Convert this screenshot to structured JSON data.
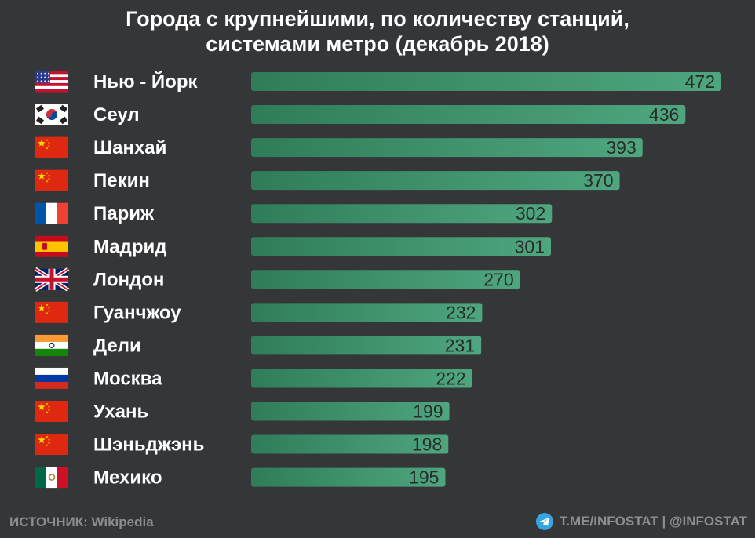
{
  "title_line1": "Города с крупнейшими, по количеству станций,",
  "title_line2": "системами метро (декабрь 2018)",
  "colors": {
    "background": "#353638",
    "bar_start": "#2f7d58",
    "bar_end": "#4ea67f",
    "label_text": "#ffffff",
    "value_text": "#2b2b2b",
    "footer_text": "#8c8d90"
  },
  "footer": {
    "source_label": "ИСТОЧНИК:",
    "source_value": "Wikipedia",
    "telegram_icon": "telegram-icon",
    "handle": "T.ME/INFOSTAT | @INFOSTAT"
  },
  "chart_data": {
    "type": "bar",
    "orientation": "horizontal",
    "title": "Города с крупнейшими, по количеству станций, системами метро (декабрь 2018)",
    "categories": [
      "Нью - Йорк",
      "Сеул",
      "Шанхай",
      "Пекин",
      "Париж",
      "Мадрид",
      "Лондон",
      "Гуанчжоу",
      "Дели",
      "Москва",
      "Ухань",
      "Шэньджэнь",
      "Мехико"
    ],
    "flags": [
      "usa-flag",
      "south-korea-flag",
      "china-flag",
      "china-flag",
      "france-flag",
      "spain-flag",
      "uk-flag",
      "china-flag",
      "india-flag",
      "russia-flag",
      "china-flag",
      "china-flag",
      "mexico-flag"
    ],
    "values": [
      472,
      436,
      393,
      370,
      302,
      301,
      270,
      232,
      231,
      222,
      199,
      198,
      195
    ],
    "value_labels": [
      "472",
      "436",
      "393",
      "370",
      "302",
      "301",
      "270",
      "232",
      "231",
      "222",
      "199",
      "198",
      "195"
    ],
    "grid": false,
    "legend": "none"
  }
}
